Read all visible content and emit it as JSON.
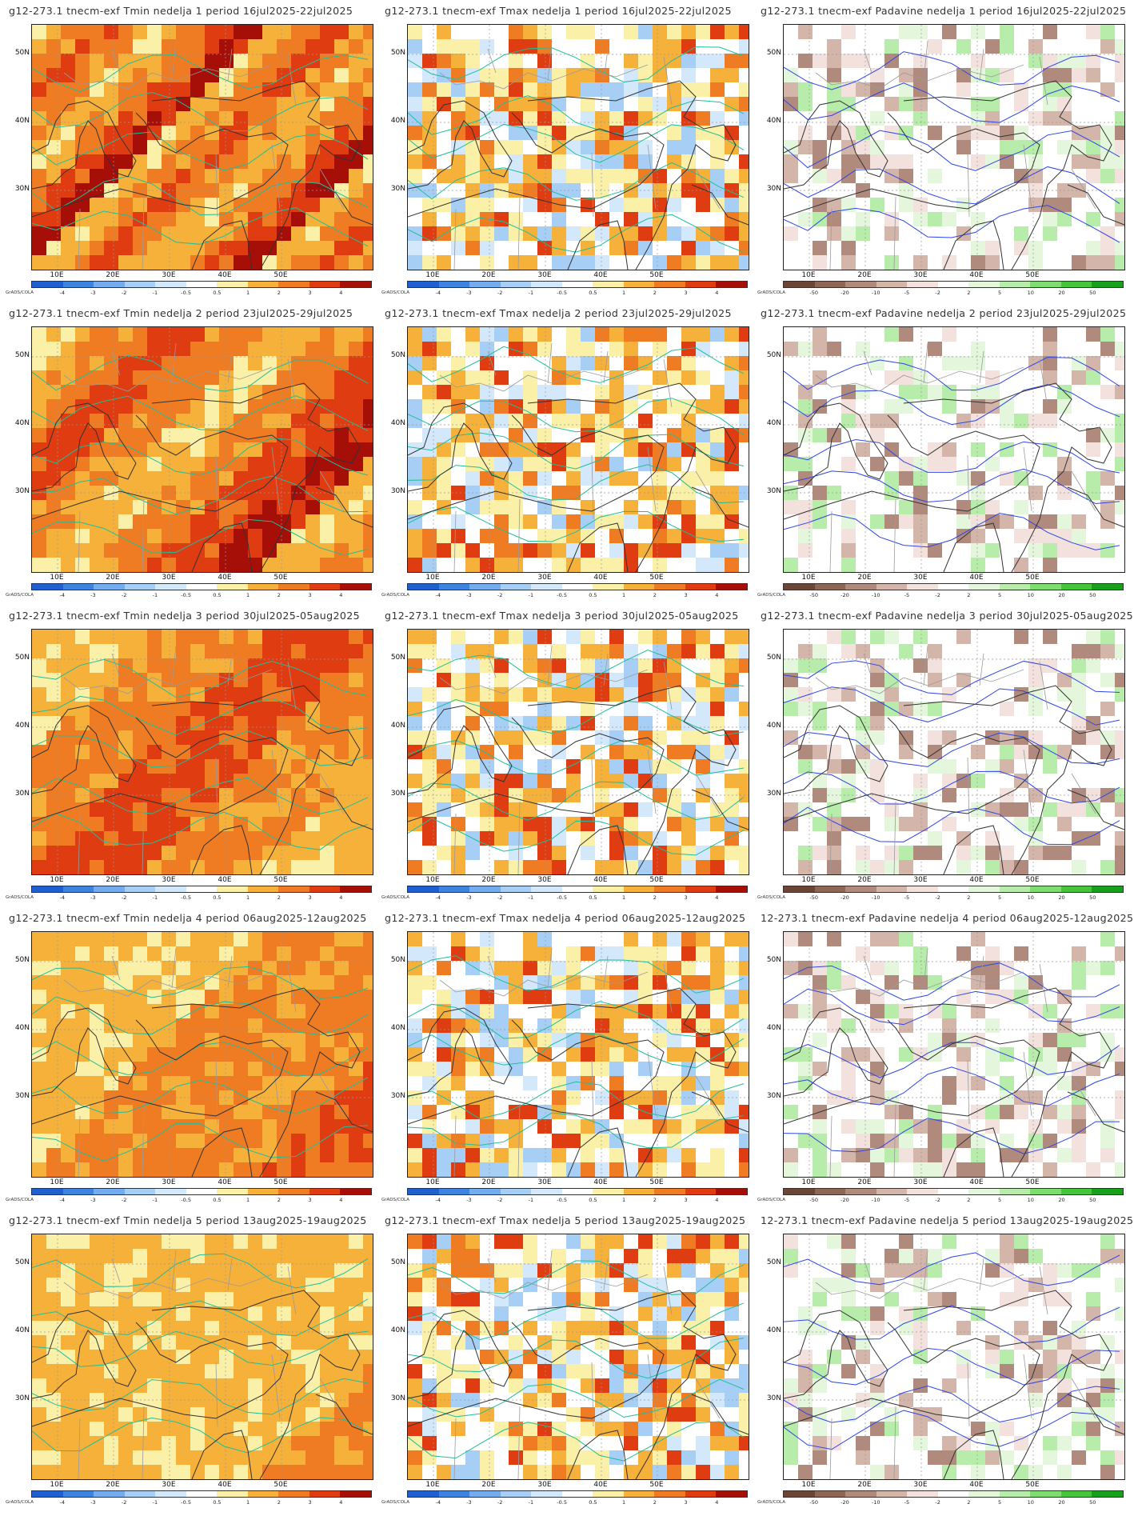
{
  "source_label": "GrADS/COLA",
  "lat_labels": [
    "50N",
    "40N",
    "30N"
  ],
  "lon_labels": [
    "10E",
    "20E",
    "30E",
    "40E",
    "50E"
  ],
  "colorbars": {
    "temp": {
      "labels": [
        "-4",
        "-3",
        "-2",
        "-1",
        "-0.5",
        "0.5",
        "1",
        "2",
        "3",
        "4"
      ],
      "colors": [
        "#1f5fd0",
        "#3d84e0",
        "#74acef",
        "#a7cff6",
        "#d4e8fb",
        "#ffffff",
        "#fbf0a8",
        "#f6b13a",
        "#ef7c22",
        "#df3c12",
        "#a60e08"
      ]
    },
    "precip": {
      "labels": [
        "-50",
        "-20",
        "-10",
        "-5",
        "-2",
        "2",
        "5",
        "10",
        "20",
        "50"
      ],
      "colors": [
        "#6b4535",
        "#8e6655",
        "#b08a7d",
        "#d4b5aa",
        "#f2e1dc",
        "#ffffff",
        "#e4f7dc",
        "#b7ecaa",
        "#7fdc70",
        "#45c43c",
        "#16a01b"
      ]
    }
  },
  "rows": [
    {
      "tmin_title": "g12-273.1 tnecm-exf Tmin nedelja 1 period 16jul2025-22jul2025",
      "tmax_title": "g12-273.1 tnecm-exf Tmax nedelja 1 period 16jul2025-22jul2025",
      "precip_title": "g12-273.1 tnecm-exf Padavine nedelja 1 period 16jul2025-22jul2025"
    },
    {
      "tmin_title": "g12-273.1 tnecm-exf Tmin nedelja 2 period 23jul2025-29jul2025",
      "tmax_title": "g12-273.1 tnecm-exf Tmax nedelja 2 period 23jul2025-29jul2025",
      "precip_title": "g12-273.1 tnecm-exf Padavine nedelja 2 period 23jul2025-29jul2025"
    },
    {
      "tmin_title": "g12-273.1 tnecm-exf Tmin nedelja 3 period 30jul2025-05aug2025",
      "tmax_title": "g12-273.1 tnecm-exf Tmax nedelja 3 period 30jul2025-05aug2025",
      "precip_title": "g12-273.1 tnecm-exf Padavine nedelja 3 period 30jul2025-05aug2025"
    },
    {
      "tmin_title": "g12-273.1 tnecm-exf Tmin nedelja 4 period 06aug2025-12aug2025",
      "tmax_title": "g12-273.1 tnecm-exf Tmax nedelja 4 period 06aug2025-12aug2025",
      "precip_title": "12-273.1 tnecm-exf Padavine nedelja 4 period 06aug2025-12aug2025"
    },
    {
      "tmin_title": "g12-273.1 tnecm-exf Tmin nedelja 5 period 13aug2025-19aug2025",
      "tmax_title": "g12-273.1 tnecm-exf Tmax nedelja 5 period 13aug2025-19aug2025",
      "precip_title": "12-273.1 tnecm-exf Padavine nedelja 5 period 13aug2025-19aug2025"
    }
  ]
}
